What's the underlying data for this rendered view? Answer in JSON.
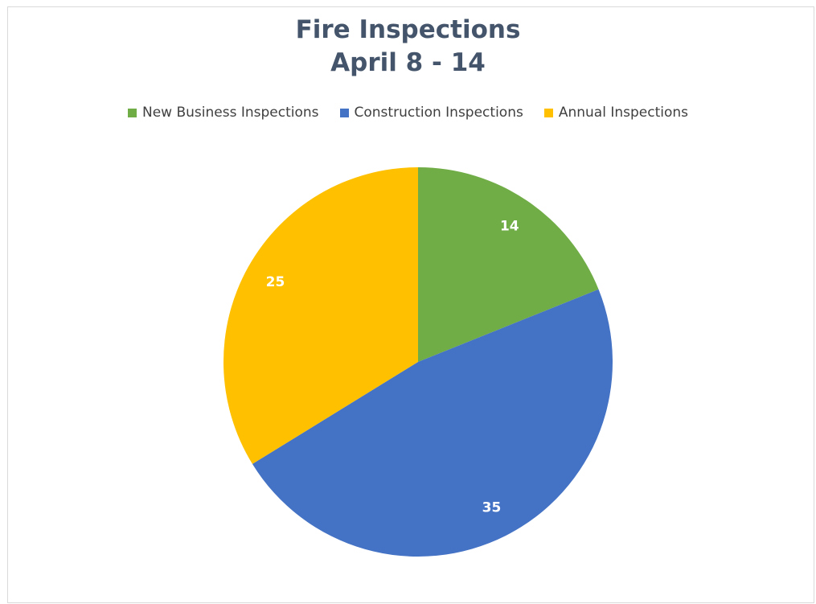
{
  "chart_data": {
    "type": "pie",
    "title": "Fire Inspections",
    "subtitle": "April 8 - 14",
    "legend_placement": "top",
    "slices": [
      {
        "name": "New Business Inspections",
        "value": 14,
        "color": "#70ad47"
      },
      {
        "name": "Construction Inspections",
        "value": 35,
        "color": "#4472c4"
      },
      {
        "name": "Annual Inspections",
        "value": 25,
        "color": "#ffc000"
      }
    ]
  }
}
